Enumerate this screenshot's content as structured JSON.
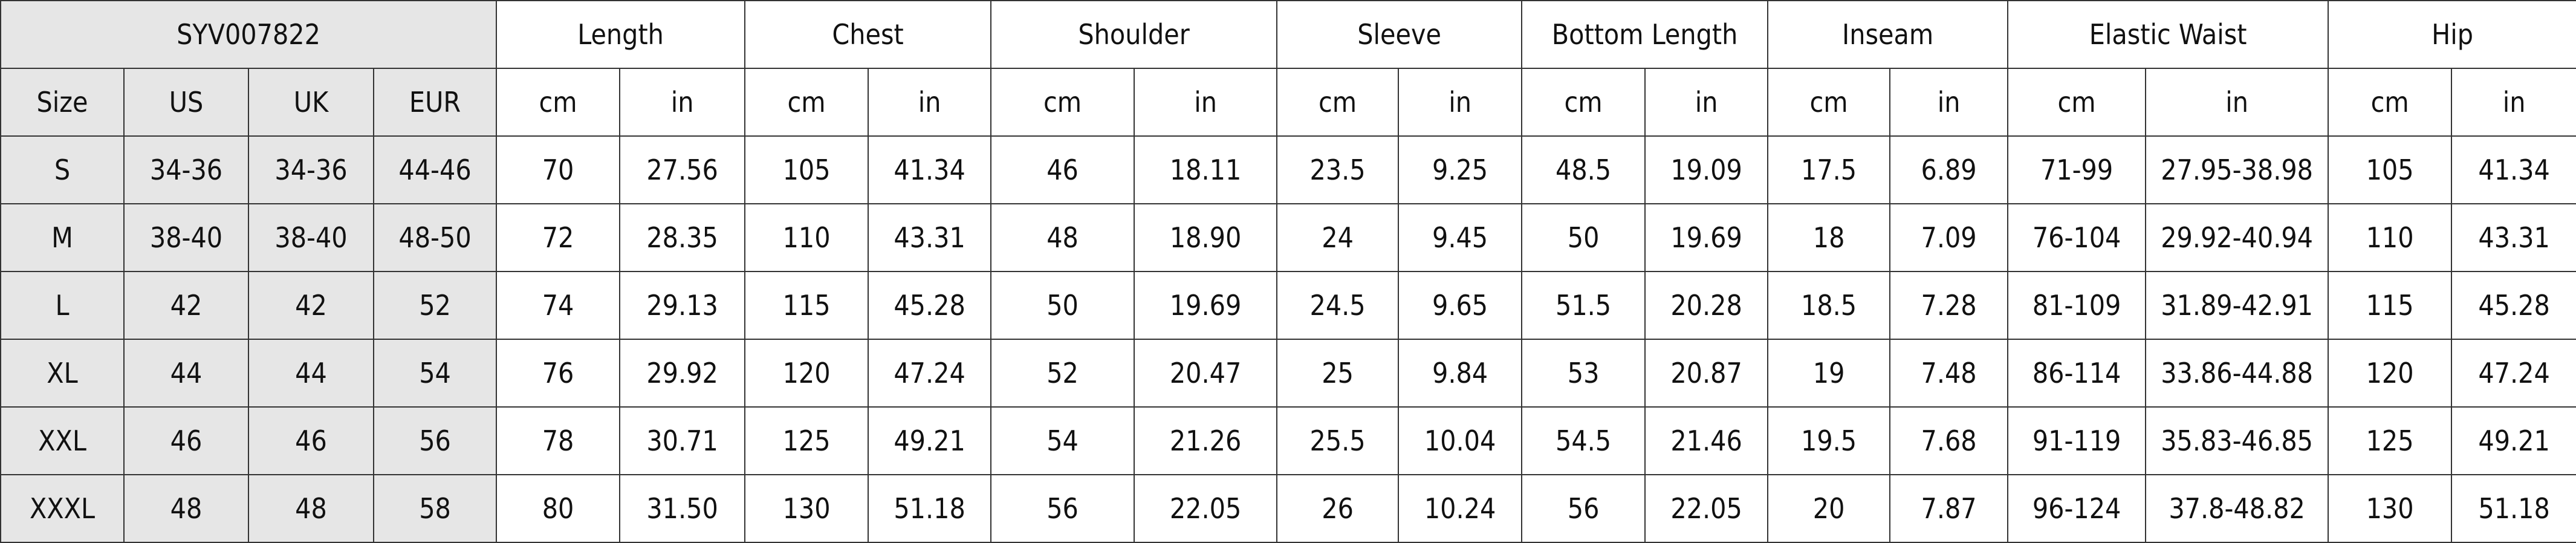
{
  "table": {
    "product_code": "SYV007822",
    "measurement_headers": [
      "Length",
      "Chest",
      "Shoulder",
      "Sleeve",
      "Bottom Length",
      "Inseam",
      "Elastic Waist",
      "Hip"
    ],
    "size_headers": [
      "Size",
      "US",
      "UK",
      "EUR"
    ],
    "unit_headers": [
      "cm",
      "in"
    ],
    "rows": [
      [
        "S",
        "34-36",
        "34-36",
        "44-46",
        "70",
        "27.56",
        "105",
        "41.34",
        "46",
        "18.11",
        "23.5",
        "9.25",
        "48.5",
        "19.09",
        "17.5",
        "6.89",
        "71-99",
        "27.95-38.98",
        "105",
        "41.34"
      ],
      [
        "M",
        "38-40",
        "38-40",
        "48-50",
        "72",
        "28.35",
        "110",
        "43.31",
        "48",
        "18.90",
        "24",
        "9.45",
        "50",
        "19.69",
        "18",
        "7.09",
        "76-104",
        "29.92-40.94",
        "110",
        "43.31"
      ],
      [
        "L",
        "42",
        "42",
        "52",
        "74",
        "29.13",
        "115",
        "45.28",
        "50",
        "19.69",
        "24.5",
        "9.65",
        "51.5",
        "20.28",
        "18.5",
        "7.28",
        "81-109",
        "31.89-42.91",
        "115",
        "45.28"
      ],
      [
        "XL",
        "44",
        "44",
        "54",
        "76",
        "29.92",
        "120",
        "47.24",
        "52",
        "20.47",
        "25",
        "9.84",
        "53",
        "20.87",
        "19",
        "7.48",
        "86-114",
        "33.86-44.88",
        "120",
        "47.24"
      ],
      [
        "XXL",
        "46",
        "46",
        "56",
        "78",
        "30.71",
        "125",
        "49.21",
        "54",
        "21.26",
        "25.5",
        "10.04",
        "54.5",
        "21.46",
        "19.5",
        "7.68",
        "91-119",
        "35.83-46.85",
        "125",
        "49.21"
      ],
      [
        "XXXL",
        "48",
        "48",
        "58",
        "80",
        "31.50",
        "130",
        "51.18",
        "56",
        "22.05",
        "26",
        "10.24",
        "56",
        "22.05",
        "20",
        "7.87",
        "96-124",
        "37.8-48.82",
        "130",
        "51.18"
      ]
    ]
  }
}
